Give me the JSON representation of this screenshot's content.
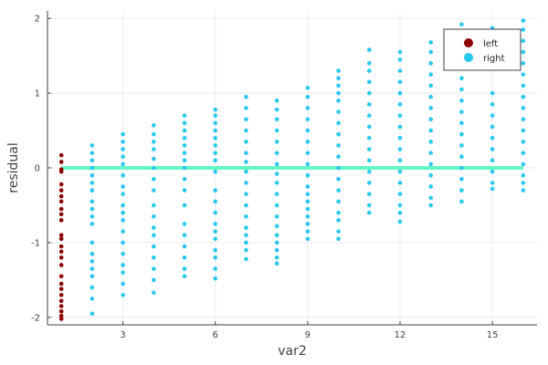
{
  "chart_data": {
    "type": "scatter",
    "xlabel": "var2",
    "ylabel": "residual",
    "xlim": [
      0.55,
      16.45
    ],
    "ylim": [
      -2.1,
      2.1
    ],
    "x_ticks": [
      3,
      6,
      9,
      12,
      15
    ],
    "y_ticks": [
      -2,
      -1,
      0,
      1,
      2
    ],
    "grid": true,
    "legend_position": "top-right",
    "reference_line": {
      "y": 0,
      "x_from": 1,
      "x_to": 16,
      "color": "#64f7c4"
    },
    "series": [
      {
        "name": "left",
        "color": "#8b0000",
        "points": [
          [
            1,
            0.17
          ],
          [
            1,
            0.08
          ],
          [
            1,
            -0.02
          ],
          [
            1,
            -0.05
          ],
          [
            1,
            -0.22
          ],
          [
            1,
            -0.3
          ],
          [
            1,
            -0.38
          ],
          [
            1,
            -0.45
          ],
          [
            1,
            -0.55
          ],
          [
            1,
            -0.62
          ],
          [
            1,
            -0.7
          ],
          [
            1,
            -0.9
          ],
          [
            1,
            -0.95
          ],
          [
            1,
            -1.05
          ],
          [
            1,
            -1.12
          ],
          [
            1,
            -1.2
          ],
          [
            1,
            -1.3
          ],
          [
            1,
            -1.45
          ],
          [
            1,
            -1.55
          ],
          [
            1,
            -1.62
          ],
          [
            1,
            -1.7
          ],
          [
            1,
            -1.78
          ],
          [
            1,
            -1.85
          ],
          [
            1,
            -1.92
          ],
          [
            1,
            -1.98
          ],
          [
            1,
            -2.02
          ]
        ]
      },
      {
        "name": "right",
        "color": "#29c8ef",
        "points": [
          [
            2,
            0.3
          ],
          [
            2,
            0.2
          ],
          [
            2,
            0.1
          ],
          [
            2,
            0.0
          ],
          [
            2,
            -0.1
          ],
          [
            2,
            -0.2
          ],
          [
            2,
            -0.3
          ],
          [
            2,
            -0.45
          ],
          [
            2,
            -0.55
          ],
          [
            2,
            -0.65
          ],
          [
            2,
            -0.75
          ],
          [
            2,
            -1.0
          ],
          [
            2,
            -1.15
          ],
          [
            2,
            -1.25
          ],
          [
            2,
            -1.35
          ],
          [
            2,
            -1.45
          ],
          [
            2,
            -1.6
          ],
          [
            2,
            -1.75
          ],
          [
            2,
            -1.95
          ],
          [
            3,
            0.45
          ],
          [
            3,
            0.35
          ],
          [
            3,
            0.25
          ],
          [
            3,
            0.15
          ],
          [
            3,
            0.05
          ],
          [
            3,
            -0.1
          ],
          [
            3,
            -0.25
          ],
          [
            3,
            -0.35
          ],
          [
            3,
            -0.5
          ],
          [
            3,
            -0.6
          ],
          [
            3,
            -0.7
          ],
          [
            3,
            -0.85
          ],
          [
            3,
            -1.0
          ],
          [
            3,
            -1.15
          ],
          [
            3,
            -1.3
          ],
          [
            3,
            -1.4
          ],
          [
            3,
            -1.55
          ],
          [
            3,
            -1.7
          ],
          [
            4,
            0.57
          ],
          [
            4,
            0.45
          ],
          [
            4,
            0.35
          ],
          [
            4,
            0.25
          ],
          [
            4,
            0.12
          ],
          [
            4,
            -0.0
          ],
          [
            4,
            -0.15
          ],
          [
            4,
            -0.3
          ],
          [
            4,
            -0.5
          ],
          [
            4,
            -0.65
          ],
          [
            4,
            -0.8
          ],
          [
            4,
            -0.9
          ],
          [
            4,
            -1.05
          ],
          [
            4,
            -1.2
          ],
          [
            4,
            -1.35
          ],
          [
            4,
            -1.5
          ],
          [
            4,
            -1.67
          ],
          [
            5,
            0.7
          ],
          [
            5,
            0.6
          ],
          [
            5,
            0.5
          ],
          [
            5,
            0.4
          ],
          [
            5,
            0.3
          ],
          [
            5,
            0.2
          ],
          [
            5,
            0.1
          ],
          [
            5,
            0.0
          ],
          [
            5,
            -0.15
          ],
          [
            5,
            -0.3
          ],
          [
            5,
            -0.5
          ],
          [
            5,
            -0.75
          ],
          [
            5,
            -0.9
          ],
          [
            5,
            -1.05
          ],
          [
            5,
            -1.2
          ],
          [
            5,
            -1.35
          ],
          [
            5,
            -1.45
          ],
          [
            6,
            0.78
          ],
          [
            6,
            0.7
          ],
          [
            6,
            0.6
          ],
          [
            6,
            0.5
          ],
          [
            6,
            0.4
          ],
          [
            6,
            0.3
          ],
          [
            6,
            0.2
          ],
          [
            6,
            0.1
          ],
          [
            6,
            -0.05
          ],
          [
            6,
            -0.3
          ],
          [
            6,
            -0.45
          ],
          [
            6,
            -0.6
          ],
          [
            6,
            -0.75
          ],
          [
            6,
            -0.85
          ],
          [
            6,
            -0.95
          ],
          [
            6,
            -1.1
          ],
          [
            6,
            -1.2
          ],
          [
            6,
            -1.35
          ],
          [
            6,
            -1.48
          ],
          [
            7,
            0.95
          ],
          [
            7,
            0.8
          ],
          [
            7,
            0.65
          ],
          [
            7,
            0.5
          ],
          [
            7,
            0.35
          ],
          [
            7,
            0.2
          ],
          [
            7,
            0.08
          ],
          [
            7,
            -0.05
          ],
          [
            7,
            -0.2
          ],
          [
            7,
            -0.35
          ],
          [
            7,
            -0.5
          ],
          [
            7,
            -0.65
          ],
          [
            7,
            -0.8
          ],
          [
            7,
            -0.9
          ],
          [
            7,
            -1.0
          ],
          [
            7,
            -1.1
          ],
          [
            7,
            -1.22
          ],
          [
            8,
            0.9
          ],
          [
            8,
            0.78
          ],
          [
            8,
            0.65
          ],
          [
            8,
            0.5
          ],
          [
            8,
            0.35
          ],
          [
            8,
            0.2
          ],
          [
            8,
            0.05
          ],
          [
            8,
            -0.08
          ],
          [
            8,
            -0.2
          ],
          [
            8,
            -0.35
          ],
          [
            8,
            -0.5
          ],
          [
            8,
            -0.65
          ],
          [
            8,
            -0.78
          ],
          [
            8,
            -0.9
          ],
          [
            8,
            -1.0
          ],
          [
            8,
            -1.1
          ],
          [
            8,
            -1.2
          ],
          [
            8,
            -1.28
          ],
          [
            9,
            1.07
          ],
          [
            9,
            0.95
          ],
          [
            9,
            0.8
          ],
          [
            9,
            0.65
          ],
          [
            9,
            0.5
          ],
          [
            9,
            0.35
          ],
          [
            9,
            0.2
          ],
          [
            9,
            0.05
          ],
          [
            9,
            -0.1
          ],
          [
            9,
            -0.25
          ],
          [
            9,
            -0.35
          ],
          [
            9,
            -0.45
          ],
          [
            9,
            -0.55
          ],
          [
            9,
            -0.65
          ],
          [
            9,
            -0.75
          ],
          [
            9,
            -0.85
          ],
          [
            9,
            -0.95
          ],
          [
            10,
            1.3
          ],
          [
            10,
            1.2
          ],
          [
            10,
            1.1
          ],
          [
            10,
            1.0
          ],
          [
            10,
            0.9
          ],
          [
            10,
            0.75
          ],
          [
            10,
            0.6
          ],
          [
            10,
            0.45
          ],
          [
            10,
            0.3
          ],
          [
            10,
            0.15
          ],
          [
            10,
            0.0
          ],
          [
            10,
            -0.15
          ],
          [
            10,
            -0.3
          ],
          [
            10,
            -0.45
          ],
          [
            10,
            -0.6
          ],
          [
            10,
            -0.7
          ],
          [
            10,
            -0.85
          ],
          [
            10,
            -0.95
          ],
          [
            11,
            1.58
          ],
          [
            11,
            1.4
          ],
          [
            11,
            1.3
          ],
          [
            11,
            1.15
          ],
          [
            11,
            1.0
          ],
          [
            11,
            0.85
          ],
          [
            11,
            0.7
          ],
          [
            11,
            0.55
          ],
          [
            11,
            0.4
          ],
          [
            11,
            0.25
          ],
          [
            11,
            0.1
          ],
          [
            11,
            -0.05
          ],
          [
            11,
            -0.2
          ],
          [
            11,
            -0.35
          ],
          [
            11,
            -0.5
          ],
          [
            11,
            -0.6
          ],
          [
            12,
            1.55
          ],
          [
            12,
            1.45
          ],
          [
            12,
            1.3
          ],
          [
            12,
            1.15
          ],
          [
            12,
            1.0
          ],
          [
            12,
            0.85
          ],
          [
            12,
            0.7
          ],
          [
            12,
            0.55
          ],
          [
            12,
            0.4
          ],
          [
            12,
            0.25
          ],
          [
            12,
            0.1
          ],
          [
            12,
            -0.05
          ],
          [
            12,
            -0.2
          ],
          [
            12,
            -0.35
          ],
          [
            12,
            -0.5
          ],
          [
            12,
            -0.6
          ],
          [
            12,
            -0.72
          ],
          [
            13,
            1.68
          ],
          [
            13,
            1.55
          ],
          [
            13,
            1.4
          ],
          [
            13,
            1.25
          ],
          [
            13,
            1.1
          ],
          [
            13,
            0.95
          ],
          [
            13,
            0.8
          ],
          [
            13,
            0.65
          ],
          [
            13,
            0.5
          ],
          [
            13,
            0.35
          ],
          [
            13,
            0.2
          ],
          [
            13,
            0.05
          ],
          [
            13,
            -0.1
          ],
          [
            13,
            -0.25
          ],
          [
            13,
            -0.4
          ],
          [
            13,
            -0.5
          ],
          [
            14,
            1.92
          ],
          [
            14,
            1.5
          ],
          [
            14,
            1.35
          ],
          [
            14,
            1.2
          ],
          [
            14,
            1.05
          ],
          [
            14,
            0.9
          ],
          [
            14,
            0.75
          ],
          [
            14,
            0.6
          ],
          [
            14,
            0.45
          ],
          [
            14,
            0.3
          ],
          [
            14,
            0.15
          ],
          [
            14,
            0.0
          ],
          [
            14,
            -0.15
          ],
          [
            14,
            -0.3
          ],
          [
            14,
            -0.45
          ],
          [
            15,
            1.87
          ],
          [
            15,
            1.75
          ],
          [
            15,
            1.0
          ],
          [
            15,
            0.85
          ],
          [
            15,
            0.7
          ],
          [
            15,
            0.55
          ],
          [
            15,
            0.4
          ],
          [
            15,
            0.25
          ],
          [
            15,
            0.1
          ],
          [
            15,
            -0.05
          ],
          [
            15,
            -0.2
          ],
          [
            15,
            -0.28
          ],
          [
            16,
            1.97
          ],
          [
            16,
            1.85
          ],
          [
            16,
            1.7
          ],
          [
            16,
            1.55
          ],
          [
            16,
            1.4
          ],
          [
            16,
            1.25
          ],
          [
            16,
            1.1
          ],
          [
            16,
            0.95
          ],
          [
            16,
            0.8
          ],
          [
            16,
            0.65
          ],
          [
            16,
            0.5
          ],
          [
            16,
            0.35
          ],
          [
            16,
            0.2
          ],
          [
            16,
            0.05
          ],
          [
            16,
            -0.1
          ],
          [
            16,
            -0.2
          ],
          [
            16,
            -0.3
          ]
        ]
      }
    ]
  }
}
